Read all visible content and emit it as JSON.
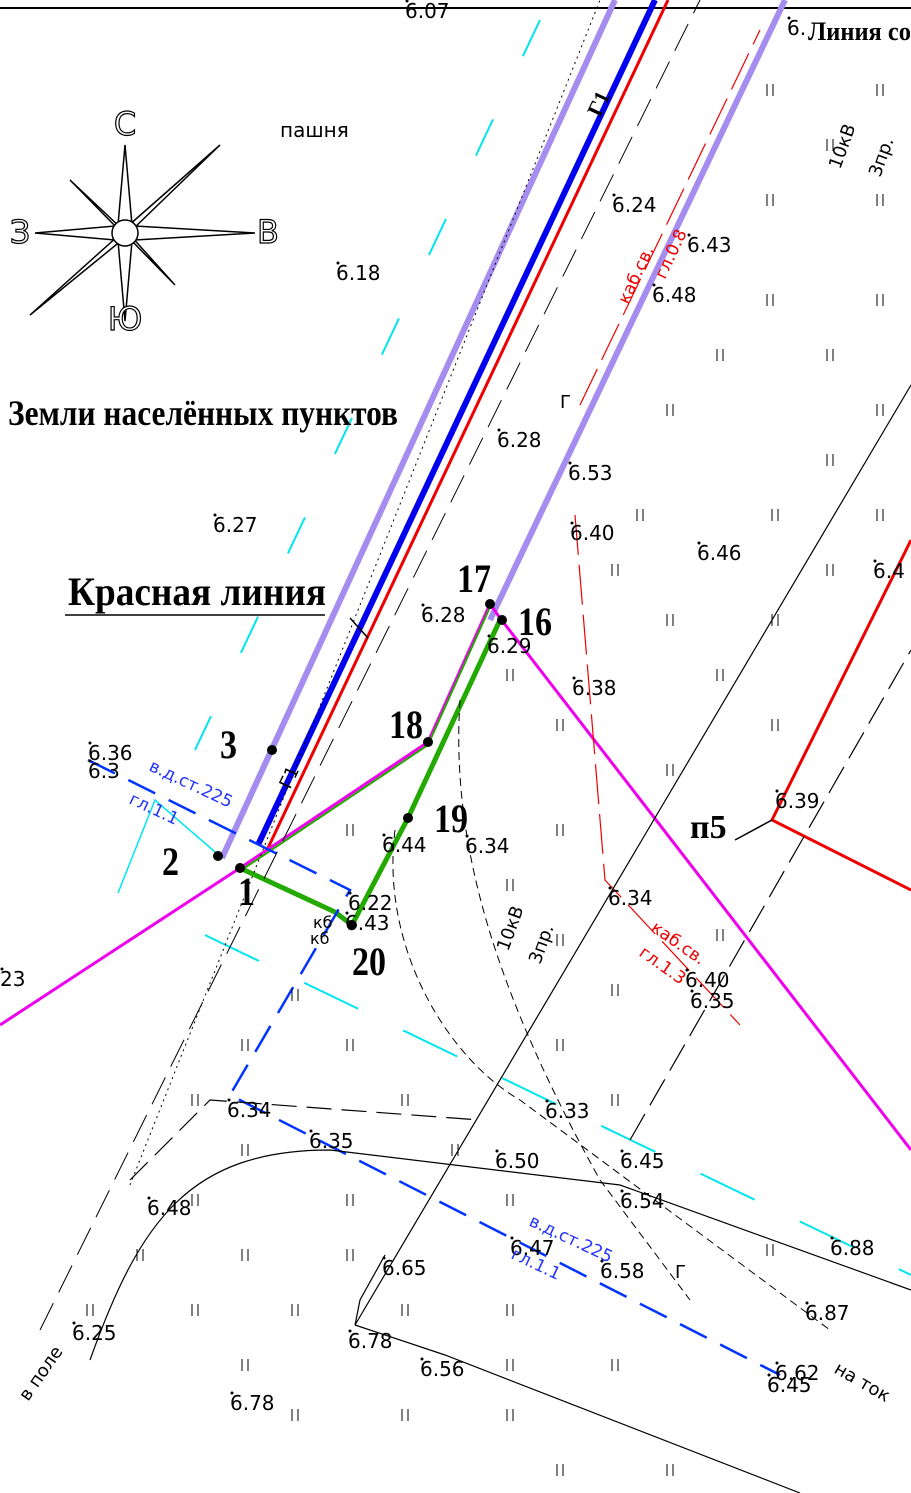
{
  "compass": {
    "north": "С",
    "west": "З",
    "east": "В",
    "south": "Ю"
  },
  "area_labels": {
    "land": "Земли населённых пунктов",
    "red_line": "Красная линия",
    "field": "пашня",
    "line_top": "Линия со"
  },
  "points": [
    "1",
    "2",
    "3",
    "16",
    "17",
    "18",
    "19",
    "20"
  ],
  "elevations": [
    "6.07",
    "6.24",
    "6.43",
    "6.48",
    "6.18",
    "6.28",
    "6.53",
    "6.27",
    "6.40",
    "6.46",
    "6.4",
    "6.28",
    "6.29",
    "6.38",
    "6.36",
    "6.3",
    "6.39",
    "6.44",
    "6.34",
    "6.22",
    "6.43",
    "6.34",
    "6.40",
    "6.35",
    "23",
    "6.34",
    "6.35",
    "6.33",
    "6.50",
    "6.45",
    "6.54",
    "6.48",
    "6.88",
    "6.47",
    "6.58",
    "6.65",
    "6.87",
    "6.25",
    "6.78",
    "6.56",
    "6.62",
    "6.45",
    "6.78",
    "6."
  ],
  "annotations": [
    "10кВ",
    "3пр.",
    "каб.св.",
    "гл.0.8",
    "Г",
    "в.д.ст.225",
    "гл.1.1",
    "каб.св.",
    "гл.1.3",
    "10кВ",
    "3пр.",
    "в.д.ст.225",
    "гл.1.1",
    "в поле",
    "на ток",
    "кб",
    "кб",
    "п5",
    "Г",
    "Г1",
    "Г1"
  ]
}
